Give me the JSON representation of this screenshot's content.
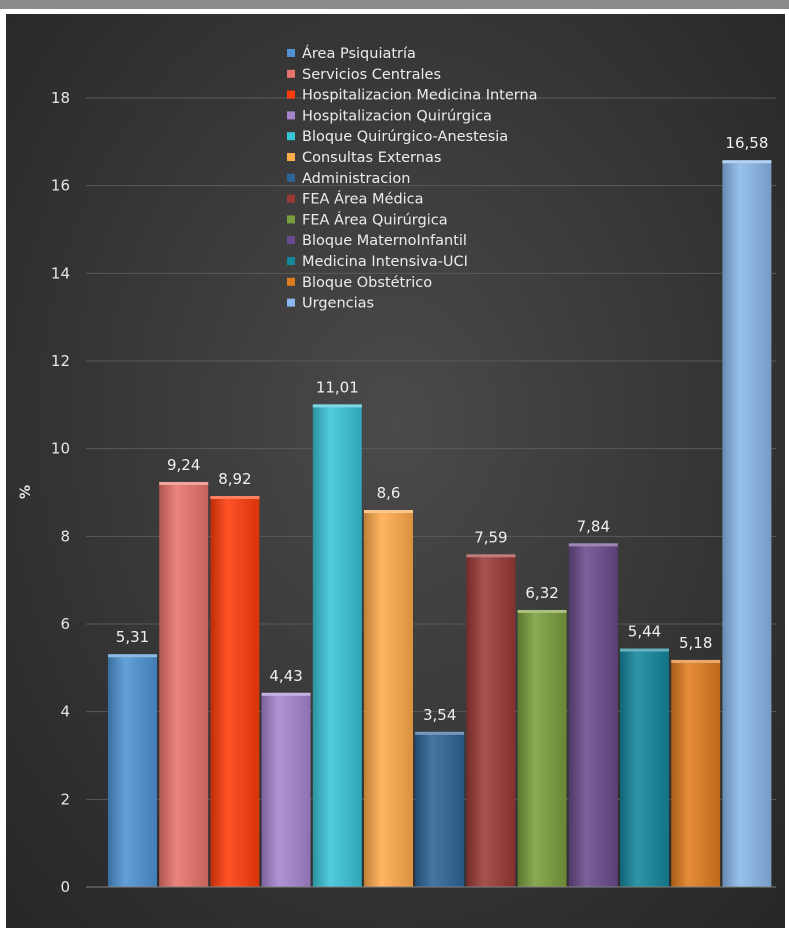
{
  "chart_data": {
    "type": "bar",
    "title": "",
    "xlabel": "",
    "ylabel": "%",
    "ylim": [
      0,
      18
    ],
    "yticks": [
      0,
      2,
      4,
      6,
      8,
      10,
      12,
      14,
      16,
      18
    ],
    "grid": true,
    "legend_position": "top-center",
    "series": [
      {
        "name": "Área Psiquiatría",
        "value": 5.31,
        "label": "5,31",
        "color": "#4f93d4"
      },
      {
        "name": "Servicios Centrales",
        "value": 9.24,
        "label": "9,24",
        "color": "#e8736a"
      },
      {
        "name": "Hospitalizacion Medicina Interna",
        "value": 8.92,
        "label": "8,92",
        "color": "#ff3c0a"
      },
      {
        "name": "Hospitalizacion Quirúrgica",
        "value": 4.43,
        "label": "4,43",
        "color": "#a685cf"
      },
      {
        "name": "Bloque Quirúrgico-Anestesia",
        "value": 11.01,
        "label": "11,01",
        "color": "#39c4d8"
      },
      {
        "name": "Consultas Externas",
        "value": 8.6,
        "label": "8,6",
        "color": "#ffab4c"
      },
      {
        "name": "Administracion",
        "value": 3.54,
        "label": "3,54",
        "color": "#2d6496"
      },
      {
        "name": "FEA Área Médica",
        "value": 7.59,
        "label": "7,59",
        "color": "#9a3a36"
      },
      {
        "name": "FEA Área Quirúrgica",
        "value": 6.32,
        "label": "6,32",
        "color": "#7a9e3c"
      },
      {
        "name": "Bloque MaternoInfantil",
        "value": 7.84,
        "label": "7,84",
        "color": "#6a4a8c"
      },
      {
        "name": "Medicina Intensiva-UCI",
        "value": 5.44,
        "label": "5,44",
        "color": "#14879c"
      },
      {
        "name": "Bloque Obstétrico",
        "value": 5.18,
        "label": "5,18",
        "color": "#e07c1e"
      },
      {
        "name": "Urgencias",
        "value": 16.58,
        "label": "16,58",
        "color": "#8ab8ea"
      }
    ],
    "tick_labels": [
      "0",
      "2",
      "4",
      "6",
      "8",
      "10",
      "12",
      "14",
      "16",
      "18"
    ]
  }
}
